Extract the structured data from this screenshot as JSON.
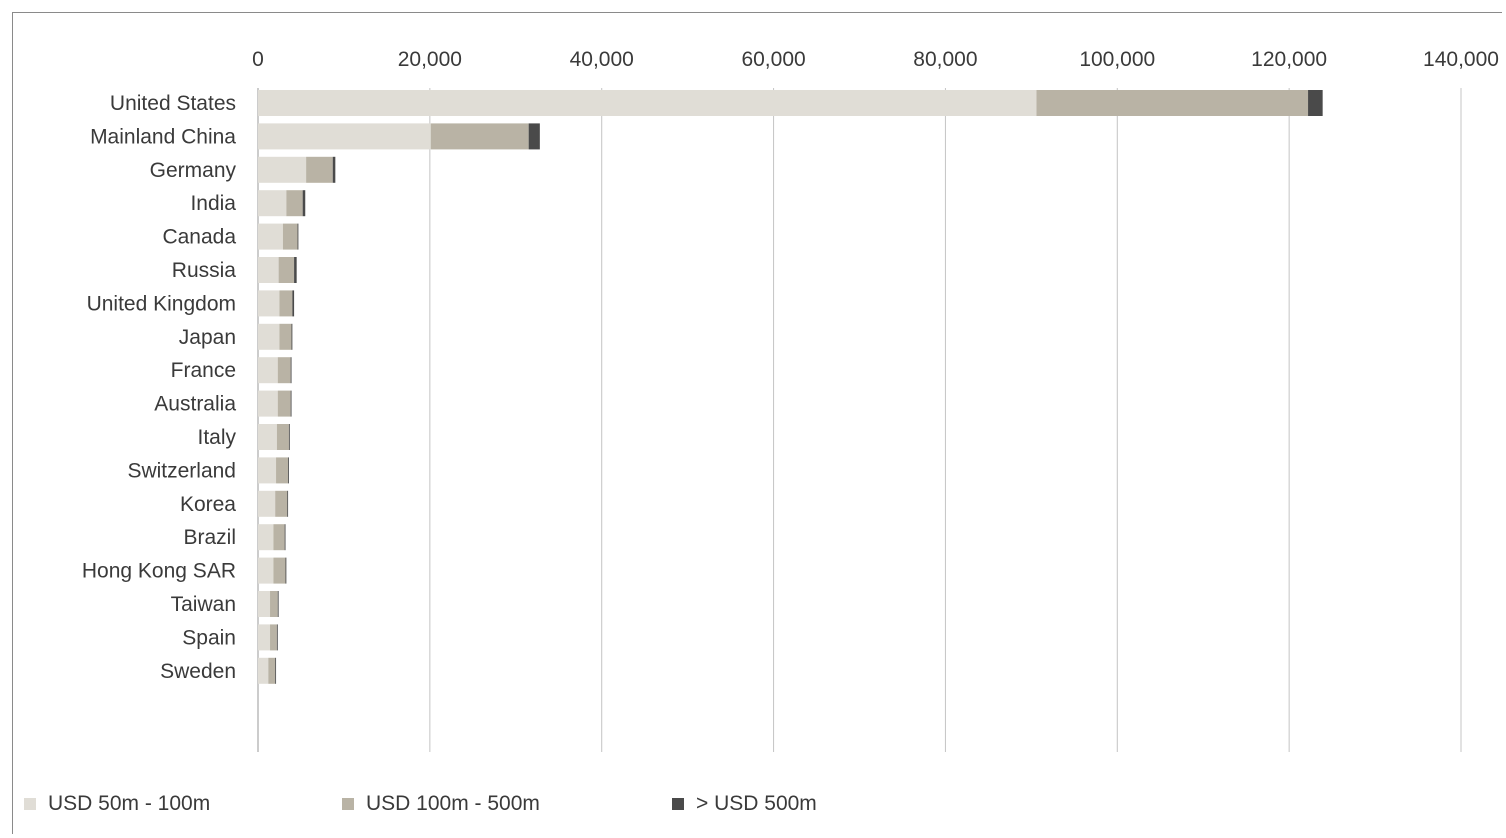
{
  "chart_data": {
    "type": "bar",
    "orientation": "horizontal",
    "stacked": true,
    "title": "",
    "xlabel": "",
    "ylabel": "",
    "xlim": [
      0,
      140000
    ],
    "x_ticks": [
      "0",
      "20,000",
      "40,000",
      "60,000",
      "80,000",
      "100,000",
      "120,000",
      "140,000"
    ],
    "x_axis_position": "top",
    "grid": "vertical",
    "legend_position": "bottom-left",
    "categories": [
      "United States",
      "Mainland China",
      "Germany",
      "India",
      "Canada",
      "Russia",
      "United Kingdom",
      "Japan",
      "France",
      "Australia",
      "Italy",
      "Switzerland",
      "Korea",
      "Brazil",
      "Hong Kong SAR",
      "Taiwan",
      "Spain",
      "Sweden"
    ],
    "series": [
      {
        "name": "USD 50m - 100m",
        "color": "#e0ddd6",
        "values": [
          90600,
          20100,
          5600,
          3300,
          2900,
          2400,
          2500,
          2500,
          2300,
          2300,
          2200,
          2100,
          2000,
          1800,
          1800,
          1400,
          1400,
          1200
        ]
      },
      {
        "name": "USD 100m - 500m",
        "color": "#b9b3a5",
        "values": [
          31600,
          11400,
          3100,
          1900,
          1700,
          1800,
          1500,
          1400,
          1500,
          1500,
          1400,
          1400,
          1400,
          1300,
          1400,
          900,
          800,
          800
        ]
      },
      {
        "name": "> USD 500m",
        "color": "#4a4a4a",
        "values": [
          1700,
          1300,
          300,
          300,
          100,
          300,
          200,
          100,
          100,
          100,
          100,
          100,
          100,
          100,
          100,
          100,
          100,
          100
        ]
      }
    ]
  }
}
